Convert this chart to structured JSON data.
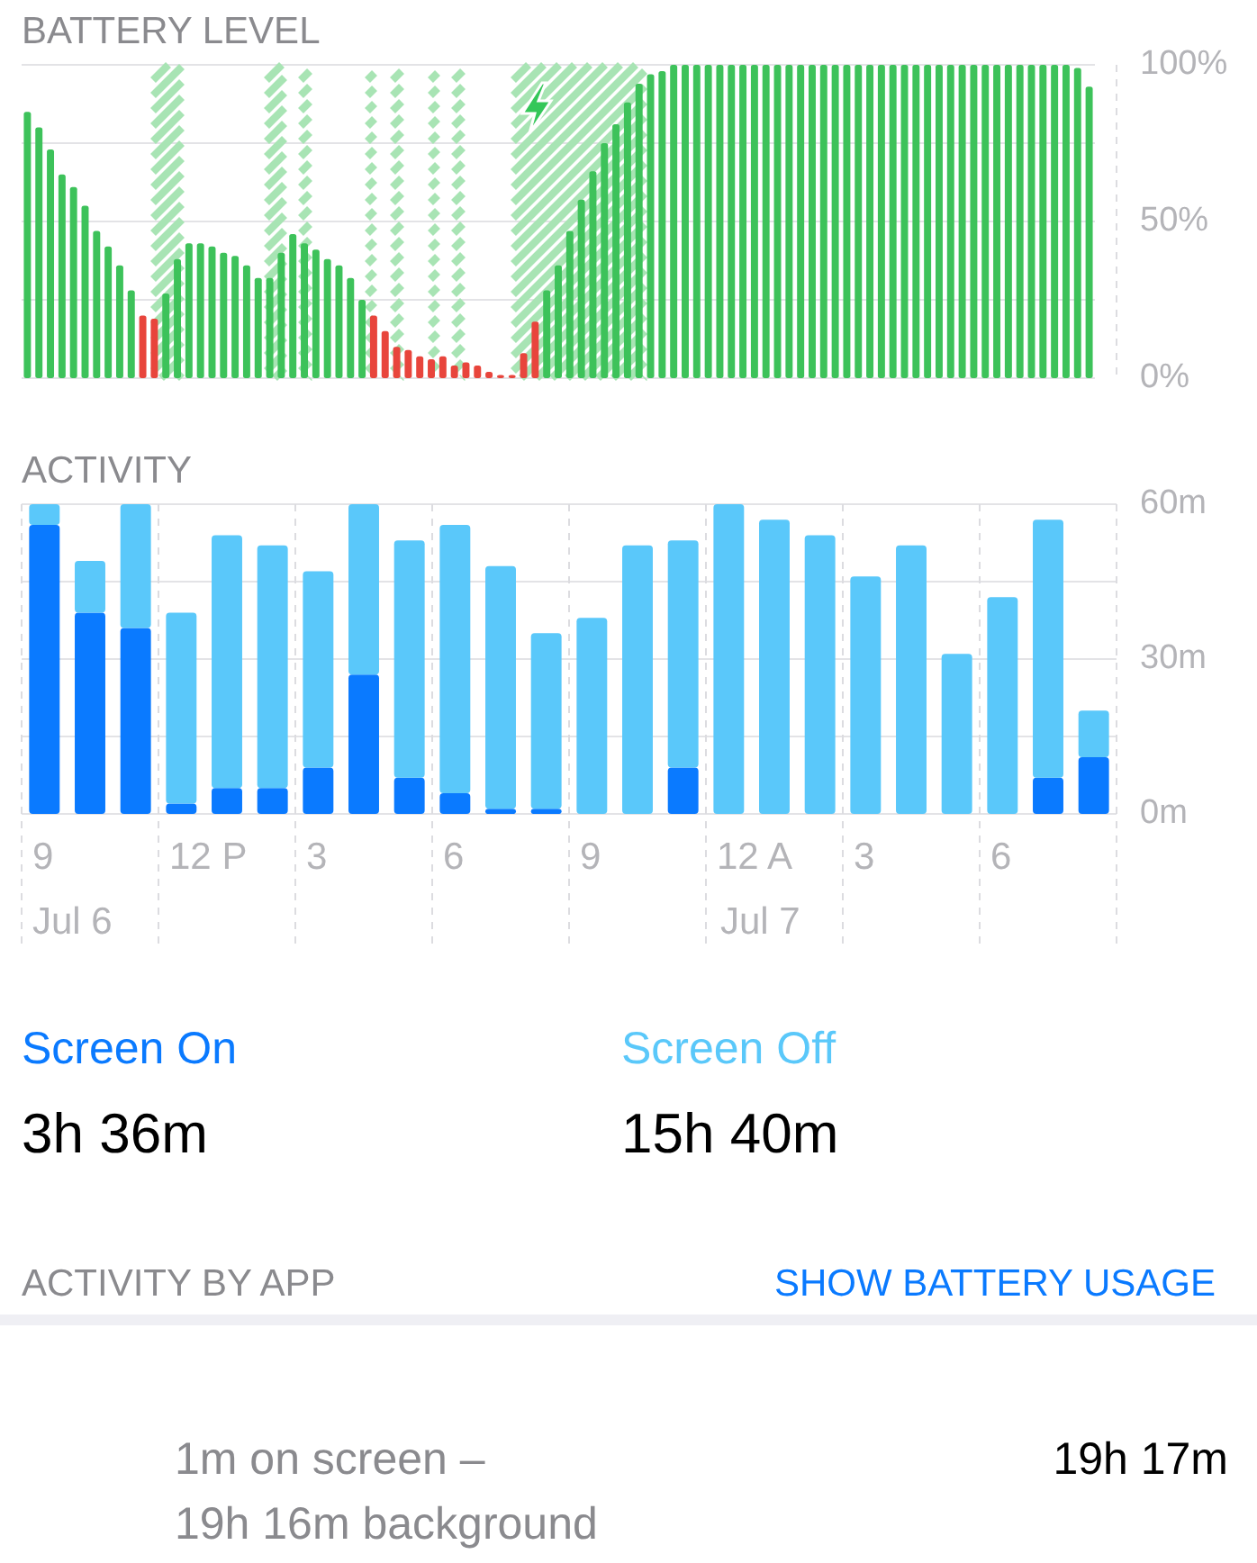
{
  "chart_data": [
    {
      "type": "bar",
      "title": "BATTERY LEVEL",
      "tick_labels": "y",
      "grid": "y",
      "categories": [
        null,
        null,
        null,
        null,
        null,
        null,
        null,
        null,
        null,
        null,
        null,
        null,
        null,
        null,
        null,
        null,
        null,
        null,
        null,
        null,
        null,
        null,
        null,
        null,
        null,
        null,
        null,
        null,
        null,
        null,
        null,
        null,
        null,
        null,
        null,
        null,
        null,
        null,
        null,
        null,
        null,
        null,
        null,
        null,
        null,
        null,
        null,
        null,
        null,
        null,
        null,
        null,
        null,
        null,
        null,
        null,
        null,
        null,
        null,
        null,
        null,
        null,
        null,
        null,
        null,
        null,
        null,
        null,
        null,
        null,
        null,
        null,
        null,
        null,
        null,
        null,
        null,
        null,
        null,
        null,
        null,
        null,
        null,
        null,
        null,
        null,
        null,
        null,
        null,
        null,
        null,
        null,
        null
      ],
      "values": [
        85,
        80,
        73,
        65,
        61,
        55,
        47,
        42,
        36,
        28,
        20,
        19,
        27,
        38,
        43,
        43,
        42,
        40,
        39,
        36,
        32,
        32,
        40,
        46,
        43,
        41,
        38,
        36,
        32,
        25,
        20,
        15,
        10,
        9,
        7,
        6,
        7,
        4,
        5,
        4,
        2,
        1,
        1,
        8,
        18,
        28,
        36,
        47,
        57,
        66,
        75,
        81,
        88,
        94,
        97,
        98,
        100,
        100,
        100,
        100,
        100,
        100,
        100,
        100,
        100,
        100,
        100,
        100,
        100,
        100,
        100,
        100,
        100,
        100,
        100,
        100,
        100,
        100,
        100,
        100,
        100,
        100,
        100,
        100,
        100,
        100,
        100,
        100,
        100,
        100,
        100,
        99,
        93
      ],
      "colors": [
        "#3dc25a",
        "#3dc25a",
        "#3dc25a",
        "#3dc25a",
        "#3dc25a",
        "#3dc25a",
        "#3dc25a",
        "#3dc25a",
        "#3dc25a",
        "#3dc25a",
        "#e8453c",
        "#e8453c",
        "#3dc25a",
        "#3dc25a",
        "#3dc25a",
        "#3dc25a",
        "#3dc25a",
        "#3dc25a",
        "#3dc25a",
        "#3dc25a",
        "#3dc25a",
        "#3dc25a",
        "#3dc25a",
        "#3dc25a",
        "#3dc25a",
        "#3dc25a",
        "#3dc25a",
        "#3dc25a",
        "#3dc25a",
        "#3dc25a",
        "#e8453c",
        "#e8453c",
        "#e8453c",
        "#e8453c",
        "#e8453c",
        "#e8453c",
        "#e8453c",
        "#e8453c",
        "#e8453c",
        "#e8453c",
        "#e8453c",
        "#e8453c",
        "#e8453c",
        "#e8453c",
        "#e8453c",
        "#3dc25a",
        "#3dc25a",
        "#3dc25a",
        "#3dc25a",
        "#3dc25a",
        "#3dc25a",
        "#3dc25a",
        "#3dc25a",
        "#3dc25a",
        "#3dc25a",
        "#3dc25a",
        "#3dc25a",
        "#3dc25a",
        "#3dc25a",
        "#3dc25a",
        "#3dc25a",
        "#3dc25a",
        "#3dc25a",
        "#3dc25a",
        "#3dc25a",
        "#3dc25a",
        "#3dc25a",
        "#3dc25a",
        "#3dc25a",
        "#3dc25a",
        "#3dc25a",
        "#3dc25a",
        "#3dc25a",
        "#3dc25a",
        "#3dc25a",
        "#3dc25a",
        "#3dc25a",
        "#3dc25a",
        "#3dc25a",
        "#3dc25a",
        "#3dc25a",
        "#3dc25a",
        "#3dc25a",
        "#3dc25a",
        "#3dc25a",
        "#3dc25a",
        "#3dc25a",
        "#3dc25a",
        "#3dc25a",
        "#3dc25a",
        "#3dc25a",
        "#3dc25a",
        "#3dc25a"
      ],
      "ylim": [
        0,
        100
      ],
      "yticks": [
        {
          "value": 0,
          "label": "0%"
        },
        {
          "value": 25,
          "label": null
        },
        {
          "value": 50,
          "label": "50%"
        },
        {
          "value": 75,
          "label": null
        },
        {
          "value": 100,
          "label": "100%"
        }
      ]
    },
    {
      "type": "bar",
      "title": "ACTIVITY",
      "stacked": true,
      "grid": true,
      "legend": "bottom",
      "categories": [
        "9",
        null,
        null,
        "12 P",
        null,
        null,
        "3",
        null,
        null,
        "6",
        null,
        null,
        "9",
        null,
        null,
        "12 A",
        null,
        null,
        "3",
        null,
        null,
        "6",
        null,
        null
      ],
      "series": [
        {
          "name": "Screen On",
          "color": "#0a7aff",
          "values": [
            56,
            39,
            36,
            2,
            5,
            5,
            9,
            27,
            7,
            4,
            1,
            1,
            0,
            0,
            9,
            0,
            0,
            0,
            0,
            0,
            0,
            0,
            7,
            11
          ]
        },
        {
          "name": "Screen Off",
          "color": "#5ac8fa",
          "values": [
            4,
            10,
            24,
            37,
            49,
            47,
            38,
            33,
            46,
            52,
            47,
            34,
            38,
            52,
            44,
            60,
            57,
            54,
            46,
            52,
            31,
            42,
            50,
            9
          ]
        }
      ],
      "ylim": [
        0,
        60
      ],
      "yticks": [
        {
          "value": 0,
          "label": "0m"
        },
        {
          "value": 15,
          "label": null
        },
        {
          "value": 30,
          "label": "30m"
        },
        {
          "value": 45,
          "label": null
        },
        {
          "value": 60,
          "label": "60m"
        }
      ],
      "annotations": [
        "Jul 6",
        "Jul 7",
        "3h 36m",
        "15h 40m",
        "ACTIVITY BY APP",
        "SHOW BATTERY USAGE",
        "1m on screen –",
        "19h 16m background",
        "19h 17m"
      ]
    }
  ]
}
